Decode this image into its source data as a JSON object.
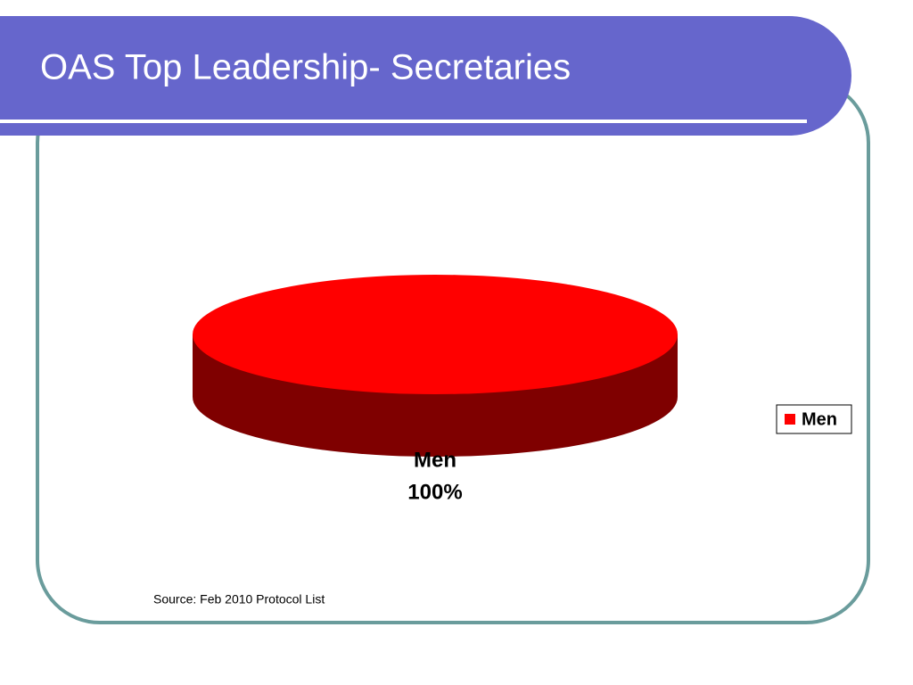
{
  "chart_data": {
    "type": "pie",
    "title": "OAS Top Leadership- Secretaries",
    "categories": [
      "Men"
    ],
    "values": [
      100
    ],
    "value_labels": [
      "100%"
    ],
    "colors": [
      "#ff0000"
    ],
    "legend": "right",
    "source": "Source: Feb 2010 Protocol List"
  }
}
